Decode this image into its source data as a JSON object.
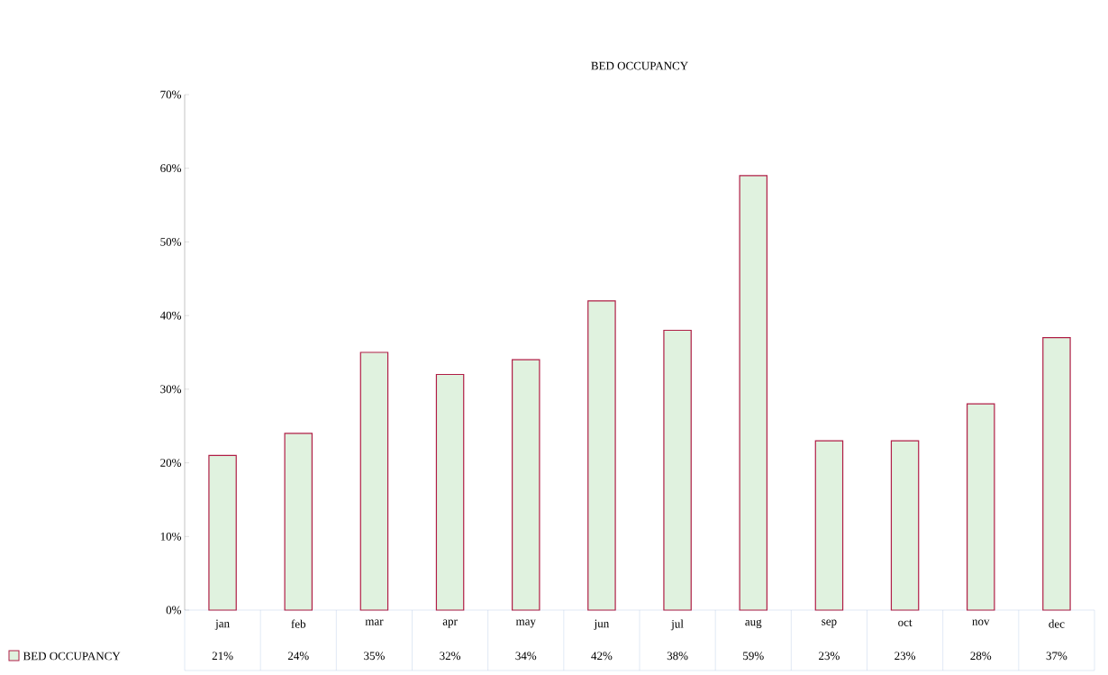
{
  "chart_data": {
    "type": "bar",
    "title": "BED OCCUPANCY",
    "categories": [
      "jan",
      "feb",
      "mar",
      "apr",
      "may",
      "jun",
      "jul",
      "aug",
      "sep",
      "oct",
      "nov",
      "dec"
    ],
    "series": [
      {
        "name": "BED OCCUPANCY",
        "color": "#e0f2df",
        "values": [
          21,
          24,
          35,
          32,
          34,
          42,
          38,
          59,
          23,
          23,
          28,
          37
        ],
        "value_labels": [
          "21%",
          "24%",
          "35%",
          "32%",
          "34%",
          "42%",
          "38%",
          "59%",
          "23%",
          "23%",
          "28%",
          "37%"
        ]
      }
    ],
    "ylim": [
      0,
      70
    ],
    "yticks": [
      {
        "value": 0,
        "label": "0%"
      },
      {
        "value": 10,
        "label": "10%"
      },
      {
        "value": 20,
        "label": "20%"
      },
      {
        "value": 30,
        "label": "30%"
      },
      {
        "value": 40,
        "label": "40%"
      },
      {
        "value": 50,
        "label": "50%"
      },
      {
        "value": 60,
        "label": "60%"
      },
      {
        "value": 70,
        "label": "70%"
      }
    ],
    "legend": "bottom"
  }
}
